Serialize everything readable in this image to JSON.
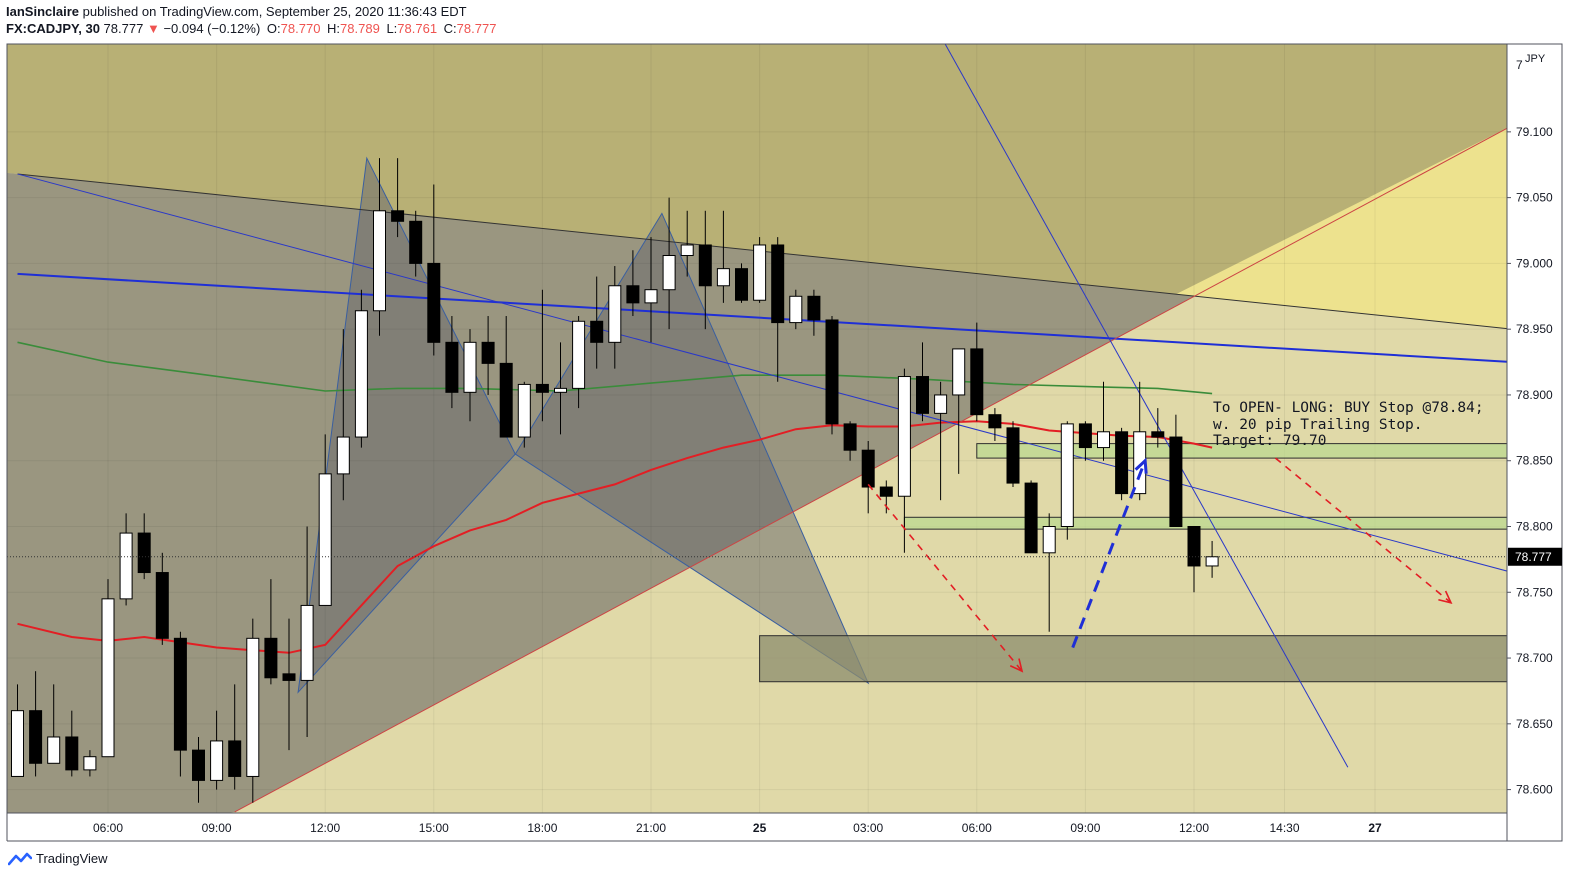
{
  "header": {
    "publisher": "IanSinclaire",
    "published_text": "published on TradingView.com, September 25, 2020 11:36:43 EDT",
    "symbol": "FX:CADJPY, 30",
    "last": "78.777",
    "change_arrow": "▼",
    "change": "−0.094 (−0.12%)",
    "o_label": "O:",
    "o_value": "78.770",
    "h_label": "H:",
    "h_value": "78.789",
    "l_label": "L:",
    "l_value": "78.761",
    "c_label": "C:",
    "c_value": "78.777"
  },
  "annotation": {
    "line1": "To OPEN- LONG: BUY Stop @78.84;",
    "line2": "w. 20 pip Trailing Stop.",
    "line3": "Target: 79.70"
  },
  "footer": {
    "brand": "TradingView",
    "logo_icon": "tradingview-logo-icon"
  },
  "colors": {
    "up_candle": "#ffffff",
    "down_candle": "#000000",
    "ma_red": "#e31e24",
    "ma_green": "#3a8c3a",
    "trendline_blue": "#1f2fd6",
    "zone_green": "#b9d98f",
    "price_tag": "#000000"
  },
  "chart_data": {
    "type": "candlestick",
    "symbol": "FX:CADJPY",
    "interval": "30",
    "currency_label": "JPY",
    "current_price": "78.777",
    "ylim": [
      78.58,
      79.16
    ],
    "y_ticks": [
      "79.100",
      "79.050",
      "79.000",
      "78.950",
      "78.900",
      "78.850",
      "78.800",
      "78.750",
      "78.700",
      "78.650",
      "78.600"
    ],
    "y_top_partial": "7",
    "x_ticks": [
      {
        "label": "06:00",
        "bar": 5
      },
      {
        "label": "09:00",
        "bar": 11
      },
      {
        "label": "12:00",
        "bar": 17
      },
      {
        "label": "15:00",
        "bar": 23
      },
      {
        "label": "18:00",
        "bar": 29
      },
      {
        "label": "21:00",
        "bar": 35
      },
      {
        "label": "25",
        "bar": 41
      },
      {
        "label": "03:00",
        "bar": 47
      },
      {
        "label": "06:00",
        "bar": 53
      },
      {
        "label": "09:00",
        "bar": 59
      },
      {
        "label": "12:00",
        "bar": 65
      },
      {
        "label": "14:30",
        "bar": 70
      },
      {
        "label": "27",
        "bar": 75
      }
    ],
    "candles": [
      {
        "bar": 0,
        "o": 78.61,
        "h": 78.68,
        "l": 78.61,
        "c": 78.66
      },
      {
        "bar": 1,
        "o": 78.66,
        "h": 78.69,
        "l": 78.61,
        "c": 78.62
      },
      {
        "bar": 2,
        "o": 78.62,
        "h": 78.68,
        "l": 78.62,
        "c": 78.64
      },
      {
        "bar": 3,
        "o": 78.64,
        "h": 78.66,
        "l": 78.61,
        "c": 78.615
      },
      {
        "bar": 4,
        "o": 78.615,
        "h": 78.63,
        "l": 78.61,
        "c": 78.625
      },
      {
        "bar": 5,
        "o": 78.625,
        "h": 78.76,
        "l": 78.625,
        "c": 78.745
      },
      {
        "bar": 6,
        "o": 78.745,
        "h": 78.81,
        "l": 78.74,
        "c": 78.795
      },
      {
        "bar": 7,
        "o": 78.795,
        "h": 78.81,
        "l": 78.76,
        "c": 78.765
      },
      {
        "bar": 8,
        "o": 78.765,
        "h": 78.78,
        "l": 78.71,
        "c": 78.715
      },
      {
        "bar": 9,
        "o": 78.715,
        "h": 78.72,
        "l": 78.61,
        "c": 78.63
      },
      {
        "bar": 10,
        "o": 78.63,
        "h": 78.64,
        "l": 78.59,
        "c": 78.607
      },
      {
        "bar": 11,
        "o": 78.607,
        "h": 78.66,
        "l": 78.6,
        "c": 78.637
      },
      {
        "bar": 12,
        "o": 78.637,
        "h": 78.68,
        "l": 78.6,
        "c": 78.61
      },
      {
        "bar": 13,
        "o": 78.61,
        "h": 78.73,
        "l": 78.59,
        "c": 78.715
      },
      {
        "bar": 14,
        "o": 78.715,
        "h": 78.76,
        "l": 78.68,
        "c": 78.685
      },
      {
        "bar": 15,
        "o": 78.688,
        "h": 78.73,
        "l": 78.63,
        "c": 78.683
      },
      {
        "bar": 16,
        "o": 78.683,
        "h": 78.8,
        "l": 78.64,
        "c": 78.74
      },
      {
        "bar": 17,
        "o": 78.74,
        "h": 78.87,
        "l": 78.74,
        "c": 78.84
      },
      {
        "bar": 18,
        "o": 78.84,
        "h": 78.95,
        "l": 78.82,
        "c": 78.868
      },
      {
        "bar": 19,
        "o": 78.868,
        "h": 78.98,
        "l": 78.86,
        "c": 78.964
      },
      {
        "bar": 20,
        "o": 78.964,
        "h": 79.08,
        "l": 78.945,
        "c": 79.04
      },
      {
        "bar": 21,
        "o": 79.04,
        "h": 79.08,
        "l": 79.02,
        "c": 79.032
      },
      {
        "bar": 22,
        "o": 79.032,
        "h": 79.04,
        "l": 78.99,
        "c": 79.0
      },
      {
        "bar": 23,
        "o": 79.0,
        "h": 79.06,
        "l": 78.93,
        "c": 78.94
      },
      {
        "bar": 24,
        "o": 78.94,
        "h": 78.96,
        "l": 78.89,
        "c": 78.902
      },
      {
        "bar": 25,
        "o": 78.902,
        "h": 78.95,
        "l": 78.88,
        "c": 78.94
      },
      {
        "bar": 26,
        "o": 78.94,
        "h": 78.96,
        "l": 78.9,
        "c": 78.924
      },
      {
        "bar": 27,
        "o": 78.924,
        "h": 78.96,
        "l": 78.87,
        "c": 78.868
      },
      {
        "bar": 28,
        "o": 78.868,
        "h": 78.91,
        "l": 78.86,
        "c": 78.908
      },
      {
        "bar": 29,
        "o": 78.908,
        "h": 78.98,
        "l": 78.88,
        "c": 78.902
      },
      {
        "bar": 30,
        "o": 78.902,
        "h": 78.94,
        "l": 78.87,
        "c": 78.905
      },
      {
        "bar": 31,
        "o": 78.905,
        "h": 78.96,
        "l": 78.89,
        "c": 78.956
      },
      {
        "bar": 32,
        "o": 78.956,
        "h": 78.99,
        "l": 78.92,
        "c": 78.94
      },
      {
        "bar": 33,
        "o": 78.94,
        "h": 78.998,
        "l": 78.92,
        "c": 78.983
      },
      {
        "bar": 34,
        "o": 78.983,
        "h": 79.01,
        "l": 78.96,
        "c": 78.97
      },
      {
        "bar": 35,
        "o": 78.97,
        "h": 79.02,
        "l": 78.94,
        "c": 78.98
      },
      {
        "bar": 36,
        "o": 78.98,
        "h": 79.05,
        "l": 78.95,
        "c": 79.006
      },
      {
        "bar": 37,
        "o": 79.006,
        "h": 79.04,
        "l": 78.99,
        "c": 79.014
      },
      {
        "bar": 38,
        "o": 79.014,
        "h": 79.04,
        "l": 78.95,
        "c": 78.983
      },
      {
        "bar": 39,
        "o": 78.983,
        "h": 79.04,
        "l": 78.97,
        "c": 78.996
      },
      {
        "bar": 40,
        "o": 78.996,
        "h": 79.0,
        "l": 78.97,
        "c": 78.972
      },
      {
        "bar": 41,
        "o": 78.972,
        "h": 79.02,
        "l": 78.97,
        "c": 79.014
      },
      {
        "bar": 42,
        "o": 79.014,
        "h": 79.02,
        "l": 78.91,
        "c": 78.955
      },
      {
        "bar": 43,
        "o": 78.955,
        "h": 78.98,
        "l": 78.95,
        "c": 78.975
      },
      {
        "bar": 44,
        "o": 78.975,
        "h": 78.98,
        "l": 78.945,
        "c": 78.957
      },
      {
        "bar": 45,
        "o": 78.957,
        "h": 78.96,
        "l": 78.87,
        "c": 78.878
      },
      {
        "bar": 46,
        "o": 78.878,
        "h": 78.88,
        "l": 78.85,
        "c": 78.858
      },
      {
        "bar": 47,
        "o": 78.858,
        "h": 78.865,
        "l": 78.81,
        "c": 78.83
      },
      {
        "bar": 48,
        "o": 78.83,
        "h": 78.835,
        "l": 78.81,
        "c": 78.823
      },
      {
        "bar": 49,
        "o": 78.823,
        "h": 78.92,
        "l": 78.78,
        "c": 78.914
      },
      {
        "bar": 50,
        "o": 78.914,
        "h": 78.94,
        "l": 78.88,
        "c": 78.886
      },
      {
        "bar": 51,
        "o": 78.886,
        "h": 78.91,
        "l": 78.82,
        "c": 78.9
      },
      {
        "bar": 52,
        "o": 78.9,
        "h": 78.93,
        "l": 78.84,
        "c": 78.935
      },
      {
        "bar": 53,
        "o": 78.935,
        "h": 78.955,
        "l": 78.88,
        "c": 78.885
      },
      {
        "bar": 54,
        "o": 78.885,
        "h": 78.89,
        "l": 78.865,
        "c": 78.875
      },
      {
        "bar": 55,
        "o": 78.875,
        "h": 78.88,
        "l": 78.83,
        "c": 78.833
      },
      {
        "bar": 56,
        "o": 78.833,
        "h": 78.835,
        "l": 78.78,
        "c": 78.78
      },
      {
        "bar": 57,
        "o": 78.78,
        "h": 78.81,
        "l": 78.72,
        "c": 78.8
      },
      {
        "bar": 58,
        "o": 78.8,
        "h": 78.88,
        "l": 78.79,
        "c": 78.878
      },
      {
        "bar": 59,
        "o": 78.878,
        "h": 78.88,
        "l": 78.85,
        "c": 78.86
      },
      {
        "bar": 60,
        "o": 78.86,
        "h": 78.91,
        "l": 78.85,
        "c": 78.872
      },
      {
        "bar": 61,
        "o": 78.872,
        "h": 78.875,
        "l": 78.82,
        "c": 78.825
      },
      {
        "bar": 62,
        "o": 78.825,
        "h": 78.91,
        "l": 78.82,
        "c": 78.872
      },
      {
        "bar": 63,
        "o": 78.872,
        "h": 78.89,
        "l": 78.86,
        "c": 78.868
      },
      {
        "bar": 64,
        "o": 78.868,
        "h": 78.885,
        "l": 78.8,
        "c": 78.8
      },
      {
        "bar": 65,
        "o": 78.8,
        "h": 78.8,
        "l": 78.75,
        "c": 78.77
      },
      {
        "bar": 66,
        "o": 78.77,
        "h": 78.789,
        "l": 78.761,
        "c": 78.777
      }
    ],
    "ma_red": [
      [
        0,
        78.726
      ],
      [
        3,
        78.716
      ],
      [
        5,
        78.713
      ],
      [
        7,
        78.716
      ],
      [
        9,
        78.712
      ],
      [
        11,
        78.708
      ],
      [
        13,
        78.706
      ],
      [
        15,
        78.704
      ],
      [
        17,
        78.71
      ],
      [
        19,
        78.74
      ],
      [
        21,
        78.77
      ],
      [
        23,
        78.785
      ],
      [
        25,
        78.797
      ],
      [
        27,
        78.805
      ],
      [
        29,
        78.818
      ],
      [
        31,
        78.825
      ],
      [
        33,
        78.832
      ],
      [
        35,
        78.843
      ],
      [
        37,
        78.852
      ],
      [
        39,
        78.86
      ],
      [
        41,
        78.866
      ],
      [
        43,
        78.874
      ],
      [
        45,
        78.877
      ],
      [
        47,
        78.876
      ],
      [
        49,
        78.876
      ],
      [
        51,
        78.879
      ],
      [
        53,
        78.88
      ],
      [
        55,
        78.878
      ],
      [
        57,
        78.873
      ],
      [
        59,
        78.871
      ],
      [
        61,
        78.869
      ],
      [
        63,
        78.868
      ],
      [
        65,
        78.863
      ],
      [
        66,
        78.86
      ]
    ],
    "ma_green": [
      [
        0,
        78.94
      ],
      [
        5,
        78.925
      ],
      [
        10,
        78.916
      ],
      [
        17,
        78.903
      ],
      [
        21,
        78.905
      ],
      [
        25,
        78.905
      ],
      [
        30,
        78.903
      ],
      [
        35,
        78.909
      ],
      [
        40,
        78.915
      ],
      [
        45,
        78.915
      ],
      [
        50,
        78.912
      ],
      [
        55,
        78.908
      ],
      [
        60,
        78.906
      ],
      [
        63,
        78.905
      ],
      [
        66,
        78.901
      ]
    ],
    "trendlines": [
      {
        "name": "upper-resistance",
        "from": [
          0,
          79.068
        ],
        "to": [
          82.6,
          78.95
        ],
        "color": "#333333"
      },
      {
        "name": "horizontal-blue",
        "from": [
          0,
          78.992
        ],
        "to": [
          82.6,
          78.925
        ],
        "color": "#1f2fd6"
      },
      {
        "name": "lower-support",
        "from": [
          12,
          78.583
        ],
        "to": [
          82.6,
          79.105
        ],
        "color": "#cc4444"
      },
      {
        "name": "descending-thin",
        "from": [
          0,
          79.068
        ],
        "to": [
          82.6,
          78.765
        ],
        "color": "#2a38c8"
      },
      {
        "name": "steep-descending",
        "from": [
          51,
          79.173
        ],
        "to": [
          73.5,
          78.617
        ],
        "color": "#2a38c8"
      }
    ],
    "zones": [
      {
        "name": "zone-79-target",
        "from_bar": 41,
        "to_bar": 82.6,
        "low": 78.682,
        "high": 78.717,
        "color": "#8c8c6e"
      },
      {
        "name": "zone-entry-upper",
        "from_bar": 53,
        "to_bar": 82.6,
        "low": 78.852,
        "high": 78.863,
        "color": "#b9d98f"
      },
      {
        "name": "zone-entry-lower",
        "from_bar": 49,
        "to_bar": 82.6,
        "low": 78.798,
        "high": 78.807,
        "color": "#b9d98f"
      }
    ],
    "harmonic_pattern": [
      {
        "bar": 15.5,
        "price": 78.674
      },
      {
        "bar": 19.3,
        "price": 79.08
      },
      {
        "bar": 27.5,
        "price": 78.855
      },
      {
        "bar": 35.6,
        "price": 79.038
      },
      {
        "bar": 47,
        "price": 78.681
      }
    ],
    "arrows": [
      {
        "name": "red-dashed-down-1",
        "from": [
          47,
          78.832
        ],
        "to": [
          55.5,
          78.69
        ],
        "color": "#e31e24"
      },
      {
        "name": "blue-dashed-up",
        "from": [
          58.3,
          78.708
        ],
        "to": [
          62.3,
          78.85
        ],
        "color": "#1f2fd6"
      },
      {
        "name": "red-dashed-down-2",
        "from": [
          69.5,
          78.852
        ],
        "to": [
          79.2,
          78.742
        ],
        "color": "#e31e24"
      }
    ]
  }
}
